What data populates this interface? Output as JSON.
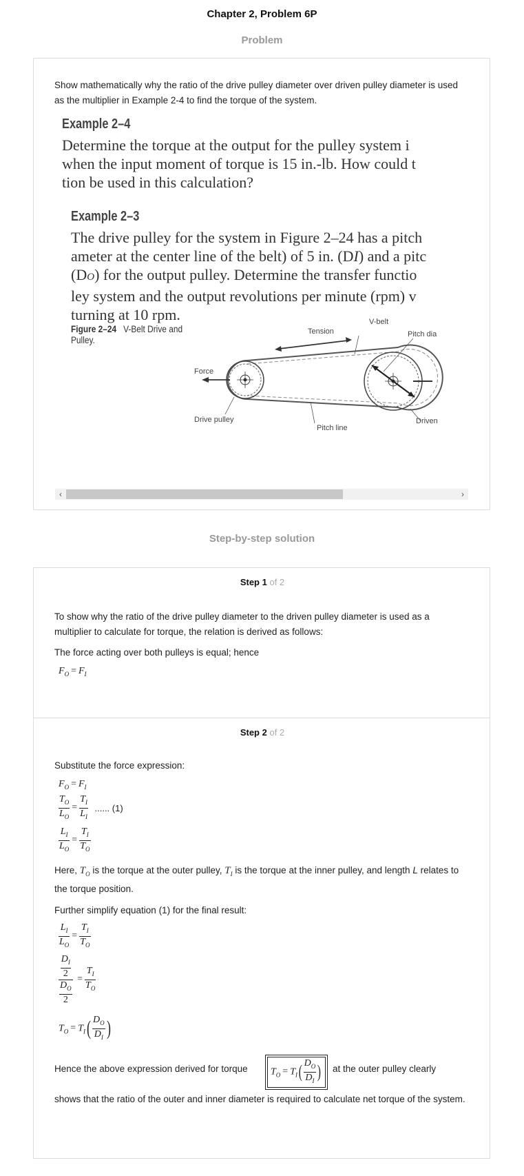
{
  "page_title": "Chapter 2, Problem 6P",
  "problem_heading": "Problem",
  "problem": {
    "question": "Show mathematically why the ratio of the drive pulley diameter over driven pulley diameter is used as the multiplier in Example 2-4 to find the torque of the system.",
    "ex24_head": "Example 2–4",
    "ex24_lines": [
      "Determine the torque at the output for the pulley system i",
      "when the input moment of torque is 15 in.-lb. How could t",
      "tion be used in this calculation?"
    ],
    "ex23_head": "Example 2–3",
    "ex23_lines": [
      "The drive pulley for the system in Figure 2–24 has a pitch",
      "ameter at the center line of the belt) of 5 in. (D",
      ") and a pitc",
      "(D",
      ") for the output pulley. Determine the transfer functio",
      "ley system and the output revolutions per minute (rpm) v",
      "turning at 10 rpm."
    ],
    "figure_caption_bold": "Figure 2–24",
    "figure_caption_rest": "V-Belt Drive and",
    "figure_caption_line2": "Pulley.",
    "labels": {
      "tension": "Tension",
      "vbelt": "V-belt",
      "pitch_dia": "Pitch dia",
      "force": "Force",
      "drive_pulley": "Drive pulley",
      "pitch_line": "Pitch line",
      "driven": "Driven"
    }
  },
  "solution_heading": "Step-by-step solution",
  "step1": {
    "label": "Step 1",
    "of": "of 2",
    "para1": "To show why the ratio of the drive pulley diameter to the driven pulley diameter is used as a multiplier to calculate for torque, the relation is derived as follows:",
    "para2": "The force acting over both pulleys is equal; hence"
  },
  "step2": {
    "label": "Step 2",
    "of": "of 2",
    "para1": "Substitute the force expression:",
    "eq_tag": "...... (1)",
    "here_a": "Here,",
    "here_b": "is the torque at the outer pulley,",
    "here_c": "is the torque at the inner pulley, and length",
    "here_d": "relates to the torque position.",
    "para3": "Further simplify equation (1) for the final result:",
    "final_a": "Hence the above expression derived for torque",
    "final_b": "at the outer pulley clearly",
    "final_c": "shows that the ratio of the outer and inner diameter is required to calculate net torque of the system."
  }
}
